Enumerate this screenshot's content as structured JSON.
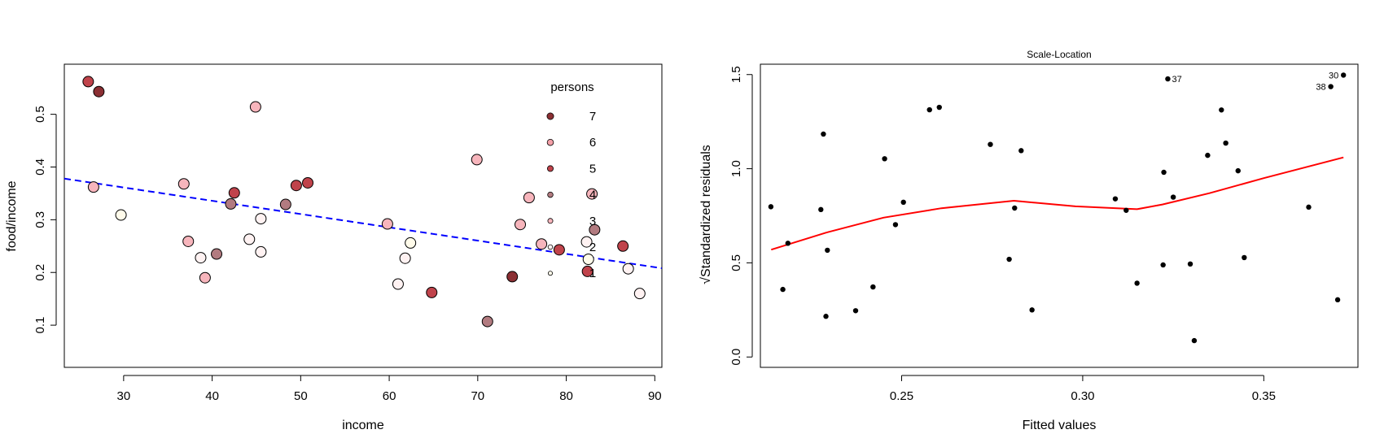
{
  "chart_data": [
    {
      "type": "scatter",
      "title": "",
      "xlabel": "income",
      "ylabel": "food/income",
      "xlim": [
        23.3,
        90.8
      ],
      "ylim": [
        0.02,
        0.595
      ],
      "xticks": [
        "30",
        "40",
        "50",
        "60",
        "70",
        "80",
        "90"
      ],
      "yticks": [
        "0.1",
        "0.2",
        "0.3",
        "0.4",
        "0.5"
      ],
      "legend": {
        "title": "persons",
        "placement": "top-right",
        "entries": [
          {
            "label": "7",
            "color": "#8b2f33"
          },
          {
            "label": "6",
            "color": "#f4a0a8"
          },
          {
            "label": "5",
            "color": "#c0434b"
          },
          {
            "label": "4",
            "color": "#b27b80"
          },
          {
            "label": "3",
            "color": "#f7b5bc"
          },
          {
            "label": "2",
            "color": "#fff2f2"
          },
          {
            "label": "1",
            "color": "#fffbea"
          }
        ]
      },
      "fit_line": {
        "color": "#0000ff",
        "style": "dashed",
        "points": [
          [
            23.3,
            0.378
          ],
          [
            90.8,
            0.208
          ]
        ]
      },
      "points": [
        {
          "x": 26.0,
          "y": 0.562,
          "persons": 5
        },
        {
          "x": 27.2,
          "y": 0.543,
          "persons": 7
        },
        {
          "x": 26.6,
          "y": 0.362,
          "persons": 3
        },
        {
          "x": 29.7,
          "y": 0.309,
          "persons": 1
        },
        {
          "x": 36.8,
          "y": 0.368,
          "persons": 3
        },
        {
          "x": 37.3,
          "y": 0.259,
          "persons": 3
        },
        {
          "x": 38.7,
          "y": 0.228,
          "persons": 2
        },
        {
          "x": 39.2,
          "y": 0.19,
          "persons": 3
        },
        {
          "x": 40.5,
          "y": 0.235,
          "persons": 4
        },
        {
          "x": 42.1,
          "y": 0.33,
          "persons": 4
        },
        {
          "x": 42.5,
          "y": 0.351,
          "persons": 5
        },
        {
          "x": 44.2,
          "y": 0.263,
          "persons": 2
        },
        {
          "x": 44.9,
          "y": 0.514,
          "persons": 3
        },
        {
          "x": 45.5,
          "y": 0.302,
          "persons": 2
        },
        {
          "x": 45.5,
          "y": 0.239,
          "persons": 2
        },
        {
          "x": 48.3,
          "y": 0.329,
          "persons": 4
        },
        {
          "x": 49.5,
          "y": 0.365,
          "persons": 5
        },
        {
          "x": 50.8,
          "y": 0.37,
          "persons": 5
        },
        {
          "x": 59.8,
          "y": 0.292,
          "persons": 3
        },
        {
          "x": 61.0,
          "y": 0.178,
          "persons": 2
        },
        {
          "x": 61.8,
          "y": 0.227,
          "persons": 2
        },
        {
          "x": 62.4,
          "y": 0.256,
          "persons": 1
        },
        {
          "x": 64.8,
          "y": 0.162,
          "persons": 5
        },
        {
          "x": 69.9,
          "y": 0.414,
          "persons": 3
        },
        {
          "x": 71.1,
          "y": 0.107,
          "persons": 4
        },
        {
          "x": 73.9,
          "y": 0.192,
          "persons": 7
        },
        {
          "x": 74.8,
          "y": 0.291,
          "persons": 3
        },
        {
          "x": 75.8,
          "y": 0.342,
          "persons": 3
        },
        {
          "x": 77.2,
          "y": 0.254,
          "persons": 3
        },
        {
          "x": 79.2,
          "y": 0.243,
          "persons": 5
        },
        {
          "x": 82.3,
          "y": 0.258,
          "persons": 2
        },
        {
          "x": 82.5,
          "y": 0.225,
          "persons": 1
        },
        {
          "x": 82.4,
          "y": 0.202,
          "persons": 5
        },
        {
          "x": 82.9,
          "y": 0.349,
          "persons": 3
        },
        {
          "x": 83.2,
          "y": 0.281,
          "persons": 4
        },
        {
          "x": 86.4,
          "y": 0.25,
          "persons": 5
        },
        {
          "x": 87.0,
          "y": 0.207,
          "persons": 2
        },
        {
          "x": 88.3,
          "y": 0.16,
          "persons": 2
        }
      ]
    },
    {
      "type": "scatter",
      "title": "Scale-Location",
      "xlabel": "Fitted values",
      "ylabel": "√Standardized residuals",
      "xlim": [
        0.211,
        0.376
      ],
      "ylim": [
        -0.055,
        1.555
      ],
      "xticks": [
        "0.25",
        "0.30",
        "0.35"
      ],
      "yticks": [
        "0.0",
        "0.5",
        "1.0",
        "1.5"
      ],
      "smoother": {
        "color": "#ff0000",
        "points": [
          [
            0.214,
            0.57
          ],
          [
            0.229,
            0.66
          ],
          [
            0.245,
            0.74
          ],
          [
            0.261,
            0.79
          ],
          [
            0.281,
            0.83
          ],
          [
            0.298,
            0.8
          ],
          [
            0.315,
            0.785
          ],
          [
            0.322,
            0.81
          ],
          [
            0.335,
            0.87
          ],
          [
            0.35,
            0.95
          ],
          [
            0.372,
            1.06
          ]
        ]
      },
      "labeled_points": [
        {
          "label": "37",
          "x": 0.3235,
          "y": 1.477
        },
        {
          "label": "30",
          "x": 0.372,
          "y": 1.497
        },
        {
          "label": "38",
          "x": 0.3685,
          "y": 1.436
        }
      ],
      "points": [
        {
          "x": 0.2139,
          "y": 0.798
        },
        {
          "x": 0.2172,
          "y": 0.359
        },
        {
          "x": 0.2186,
          "y": 0.604
        },
        {
          "x": 0.2277,
          "y": 0.783
        },
        {
          "x": 0.2284,
          "y": 1.184
        },
        {
          "x": 0.2291,
          "y": 0.216
        },
        {
          "x": 0.2295,
          "y": 0.567
        },
        {
          "x": 0.2373,
          "y": 0.246
        },
        {
          "x": 0.2421,
          "y": 0.372
        },
        {
          "x": 0.2453,
          "y": 1.053
        },
        {
          "x": 0.2483,
          "y": 0.703
        },
        {
          "x": 0.2505,
          "y": 0.822
        },
        {
          "x": 0.2577,
          "y": 1.313
        },
        {
          "x": 0.2604,
          "y": 1.326
        },
        {
          "x": 0.2745,
          "y": 1.129
        },
        {
          "x": 0.2797,
          "y": 0.519
        },
        {
          "x": 0.2812,
          "y": 0.791
        },
        {
          "x": 0.283,
          "y": 1.096
        },
        {
          "x": 0.286,
          "y": 0.25
        },
        {
          "x": 0.309,
          "y": 0.84
        },
        {
          "x": 0.312,
          "y": 0.779
        },
        {
          "x": 0.315,
          "y": 0.392
        },
        {
          "x": 0.3222,
          "y": 0.489
        },
        {
          "x": 0.3224,
          "y": 0.981
        },
        {
          "x": 0.325,
          "y": 0.849
        },
        {
          "x": 0.3297,
          "y": 0.494
        },
        {
          "x": 0.3308,
          "y": 0.087
        },
        {
          "x": 0.3345,
          "y": 1.071
        },
        {
          "x": 0.3383,
          "y": 1.312
        },
        {
          "x": 0.3395,
          "y": 1.136
        },
        {
          "x": 0.3429,
          "y": 0.989
        },
        {
          "x": 0.3446,
          "y": 0.528
        },
        {
          "x": 0.3624,
          "y": 0.796
        },
        {
          "x": 0.3704,
          "y": 0.304
        }
      ]
    }
  ]
}
